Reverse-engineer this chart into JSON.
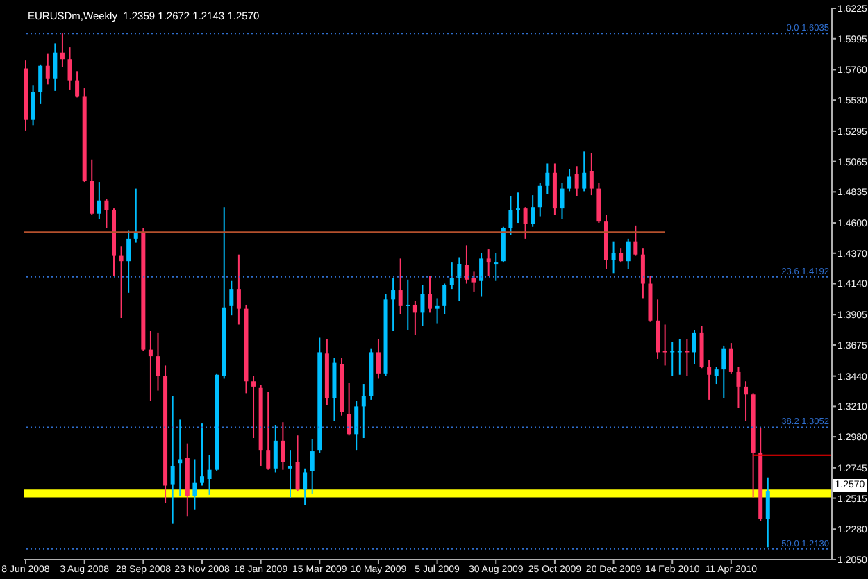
{
  "chart_data": {
    "type": "candlestick",
    "title": "EURUSDm,Weekly  1.2359 1.2672 1.2143 1.2570",
    "x": [
      "2008-06-08",
      "2008-06-15",
      "2008-06-22",
      "2008-06-29",
      "2008-07-06",
      "2008-07-13",
      "2008-07-20",
      "2008-07-27",
      "2008-08-03",
      "2008-08-10",
      "2008-08-17",
      "2008-08-24",
      "2008-08-31",
      "2008-09-07",
      "2008-09-14",
      "2008-09-21",
      "2008-09-28",
      "2008-10-05",
      "2008-10-12",
      "2008-10-19",
      "2008-10-26",
      "2008-11-02",
      "2008-11-09",
      "2008-11-16",
      "2008-11-23",
      "2008-11-30",
      "2008-12-07",
      "2008-12-14",
      "2008-12-21",
      "2008-12-28",
      "2009-01-04",
      "2009-01-11",
      "2009-01-18",
      "2009-01-25",
      "2009-02-01",
      "2009-02-08",
      "2009-02-15",
      "2009-02-22",
      "2009-03-01",
      "2009-03-08",
      "2009-03-15",
      "2009-03-22",
      "2009-03-29",
      "2009-04-05",
      "2009-04-12",
      "2009-04-19",
      "2009-04-26",
      "2009-05-03",
      "2009-05-10",
      "2009-05-17",
      "2009-05-24",
      "2009-05-31",
      "2009-06-07",
      "2009-06-14",
      "2009-06-21",
      "2009-06-28",
      "2009-07-05",
      "2009-07-12",
      "2009-07-19",
      "2009-07-26",
      "2009-08-02",
      "2009-08-09",
      "2009-08-16",
      "2009-08-23",
      "2009-08-30",
      "2009-09-06",
      "2009-09-13",
      "2009-09-20",
      "2009-09-27",
      "2009-10-04",
      "2009-10-11",
      "2009-10-18",
      "2009-10-25",
      "2009-11-01",
      "2009-11-08",
      "2009-11-15",
      "2009-11-22",
      "2009-11-29",
      "2009-12-06",
      "2009-12-13",
      "2009-12-20",
      "2009-12-27",
      "2010-01-03",
      "2010-01-10",
      "2010-01-17",
      "2010-01-24",
      "2010-01-31",
      "2010-02-07",
      "2010-02-14",
      "2010-02-21",
      "2010-02-28",
      "2010-03-07",
      "2010-03-14",
      "2010-03-21",
      "2010-03-28",
      "2010-04-04",
      "2010-04-11",
      "2010-04-18",
      "2010-04-25",
      "2010-05-02",
      "2010-05-09",
      "2010-05-16"
    ],
    "ohlc": [
      [
        1.577,
        1.583,
        1.53,
        1.538
      ],
      [
        1.538,
        1.564,
        1.534,
        1.559
      ],
      [
        1.559,
        1.58,
        1.55,
        1.579
      ],
      [
        1.579,
        1.588,
        1.565,
        1.569
      ],
      [
        1.569,
        1.596,
        1.56,
        1.589
      ],
      [
        1.589,
        1.6035,
        1.578,
        1.584
      ],
      [
        1.584,
        1.593,
        1.561,
        1.568
      ],
      [
        1.568,
        1.575,
        1.555,
        1.556
      ],
      [
        1.556,
        1.562,
        1.491,
        1.492
      ],
      [
        1.492,
        1.508,
        1.466,
        1.467
      ],
      [
        1.467,
        1.491,
        1.463,
        1.477
      ],
      [
        1.477,
        1.478,
        1.456,
        1.47
      ],
      [
        1.47,
        1.471,
        1.42,
        1.435
      ],
      [
        1.435,
        1.442,
        1.388,
        1.431
      ],
      [
        1.431,
        1.454,
        1.407,
        1.448
      ],
      [
        1.448,
        1.486,
        1.445,
        1.453
      ],
      [
        1.453,
        1.456,
        1.363,
        1.364
      ],
      [
        1.364,
        1.378,
        1.325,
        1.359
      ],
      [
        1.359,
        1.377,
        1.333,
        1.344
      ],
      [
        1.344,
        1.352,
        1.248,
        1.261
      ],
      [
        1.262,
        1.329,
        1.232,
        1.276
      ],
      [
        1.278,
        1.311,
        1.253,
        1.281
      ],
      [
        1.282,
        1.293,
        1.238,
        1.253
      ],
      [
        1.253,
        1.281,
        1.243,
        1.263
      ],
      [
        1.263,
        1.308,
        1.261,
        1.268
      ],
      [
        1.266,
        1.284,
        1.254,
        1.273
      ],
      [
        1.273,
        1.346,
        1.272,
        1.345
      ],
      [
        1.344,
        1.472,
        1.342,
        1.396
      ],
      [
        1.397,
        1.416,
        1.39,
        1.41
      ],
      [
        1.41,
        1.436,
        1.383,
        1.395
      ],
      [
        1.395,
        1.398,
        1.331,
        1.34
      ],
      [
        1.34,
        1.344,
        1.297,
        1.336
      ],
      [
        1.335,
        1.337,
        1.276,
        1.288
      ],
      [
        1.288,
        1.332,
        1.273,
        1.274
      ],
      [
        1.274,
        1.307,
        1.271,
        1.295
      ],
      [
        1.295,
        1.309,
        1.273,
        1.279
      ],
      [
        1.274,
        1.288,
        1.252,
        1.276
      ],
      [
        1.279,
        1.299,
        1.257,
        1.258
      ],
      [
        1.258,
        1.274,
        1.246,
        1.271
      ],
      [
        1.272,
        1.296,
        1.255,
        1.287
      ],
      [
        1.288,
        1.373,
        1.286,
        1.362
      ],
      [
        1.361,
        1.372,
        1.322,
        1.327
      ],
      [
        1.327,
        1.358,
        1.31,
        1.354
      ],
      [
        1.353,
        1.358,
        1.314,
        1.317
      ],
      [
        1.315,
        1.339,
        1.299,
        1.3
      ],
      [
        1.3,
        1.325,
        1.288,
        1.321
      ],
      [
        1.321,
        1.338,
        1.297,
        1.329
      ],
      [
        1.329,
        1.365,
        1.326,
        1.362
      ],
      [
        1.362,
        1.372,
        1.342,
        1.346
      ],
      [
        1.346,
        1.406,
        1.344,
        1.402
      ],
      [
        1.402,
        1.418,
        1.378,
        1.409
      ],
      [
        1.409,
        1.433,
        1.391,
        1.397
      ],
      [
        1.397,
        1.417,
        1.379,
        1.398
      ],
      [
        1.398,
        1.401,
        1.375,
        1.392
      ],
      [
        1.392,
        1.413,
        1.382,
        1.406
      ],
      [
        1.406,
        1.42,
        1.392,
        1.395
      ],
      [
        1.395,
        1.403,
        1.384,
        1.397
      ],
      [
        1.397,
        1.414,
        1.391,
        1.413
      ],
      [
        1.413,
        1.43,
        1.41,
        1.418
      ],
      [
        1.418,
        1.434,
        1.401,
        1.429
      ],
      [
        1.428,
        1.443,
        1.414,
        1.417
      ],
      [
        1.418,
        1.423,
        1.408,
        1.415
      ],
      [
        1.416,
        1.437,
        1.404,
        1.433
      ],
      [
        1.433,
        1.44,
        1.42,
        1.43
      ],
      [
        1.429,
        1.437,
        1.416,
        1.43
      ],
      [
        1.431,
        1.457,
        1.43,
        1.456
      ],
      [
        1.456,
        1.48,
        1.451,
        1.47
      ],
      [
        1.47,
        1.483,
        1.46,
        1.471
      ],
      [
        1.471,
        1.472,
        1.448,
        1.459
      ],
      [
        1.459,
        1.481,
        1.457,
        1.472
      ],
      [
        1.472,
        1.49,
        1.465,
        1.488
      ],
      [
        1.488,
        1.505,
        1.482,
        1.498
      ],
      [
        1.498,
        1.505,
        1.466,
        1.471
      ],
      [
        1.471,
        1.49,
        1.463,
        1.486
      ],
      [
        1.486,
        1.501,
        1.484,
        1.495
      ],
      [
        1.497,
        1.503,
        1.48,
        1.486
      ],
      [
        1.486,
        1.514,
        1.484,
        1.498
      ],
      [
        1.499,
        1.513,
        1.481,
        1.486
      ],
      [
        1.486,
        1.49,
        1.46,
        1.461
      ],
      [
        1.461,
        1.466,
        1.425,
        1.432
      ],
      [
        1.432,
        1.446,
        1.422,
        1.437
      ],
      [
        1.437,
        1.441,
        1.43,
        1.431
      ],
      [
        1.431,
        1.448,
        1.425,
        1.446
      ],
      [
        1.446,
        1.458,
        1.435,
        1.436
      ],
      [
        1.436,
        1.441,
        1.403,
        1.414
      ],
      [
        1.414,
        1.42,
        1.385,
        1.386
      ],
      [
        1.386,
        1.402,
        1.357,
        1.362
      ],
      [
        1.363,
        1.383,
        1.352,
        1.362
      ],
      [
        1.362,
        1.37,
        1.344,
        1.363
      ],
      [
        1.362,
        1.372,
        1.345,
        1.363
      ],
      [
        1.363,
        1.372,
        1.344,
        1.362
      ],
      [
        1.362,
        1.379,
        1.353,
        1.377
      ],
      [
        1.377,
        1.382,
        1.35,
        1.351
      ],
      [
        1.351,
        1.356,
        1.326,
        1.345
      ],
      [
        1.344,
        1.351,
        1.338,
        1.349
      ],
      [
        1.349,
        1.367,
        1.327,
        1.365
      ],
      [
        1.365,
        1.369,
        1.346,
        1.347
      ],
      [
        1.347,
        1.351,
        1.32,
        1.336
      ],
      [
        1.336,
        1.34,
        1.31,
        1.33
      ],
      [
        1.33,
        1.331,
        1.252,
        1.286
      ],
      [
        1.286,
        1.305,
        1.234,
        1.236
      ],
      [
        1.2359,
        1.2672,
        1.2143,
        1.257
      ]
    ],
    "colors": [
      "#ff3366",
      "#00bfff",
      "#00bfff",
      "#ff3366",
      "#00bfff",
      "#ff3366",
      "#ff3366",
      "#ff3366",
      "#ff3366",
      "#ff3366",
      "#00bfff",
      "#ff3366",
      "#ff3366",
      "#ff3366",
      "#00bfff",
      "#00bfff",
      "#ff3366",
      "#ff3366",
      "#ff3366",
      "#ff3366",
      "#00bfff",
      "#00bfff",
      "#ff3366",
      "#00bfff",
      "#00bfff",
      "#00bfff",
      "#00bfff",
      "#00bfff",
      "#00bfff",
      "#ff3366",
      "#ff3366",
      "#ff3366",
      "#ff3366",
      "#ff3366",
      "#00bfff",
      "#ff3366",
      "#00bfff",
      "#ff3366",
      "#00bfff",
      "#00bfff",
      "#00bfff",
      "#ff3366",
      "#00bfff",
      "#ff3366",
      "#ff3366",
      "#00bfff",
      "#00bfff",
      "#00bfff",
      "#ff3366",
      "#00bfff",
      "#00bfff",
      "#ff3366",
      "#00bfff",
      "#ff3366",
      "#00bfff",
      "#ff3366",
      "#00bfff",
      "#00bfff",
      "#00bfff",
      "#00bfff",
      "#ff3366",
      "#ff3366",
      "#00bfff",
      "#ff3366",
      "#00bfff",
      "#00bfff",
      "#00bfff",
      "#00bfff",
      "#ff3366",
      "#00bfff",
      "#00bfff",
      "#00bfff",
      "#ff3366",
      "#00bfff",
      "#00bfff",
      "#ff3366",
      "#00bfff",
      "#ff3366",
      "#ff3366",
      "#ff3366",
      "#00bfff",
      "#ff3366",
      "#00bfff",
      "#ff3366",
      "#ff3366",
      "#ff3366",
      "#ff3366",
      "#ff3366",
      "#00bfff",
      "#00bfff",
      "#ff3366",
      "#00bfff",
      "#ff3366",
      "#ff3366",
      "#00bfff",
      "#00bfff",
      "#ff3366",
      "#ff3366",
      "#ff3366",
      "#ff3366",
      "#ff3366",
      "#00bfff"
    ],
    "xlim": [
      "2008-06-06",
      "2010-07-16"
    ],
    "xticks": [
      {
        "value": "2008-06-08",
        "label": "8 Jun 2008"
      },
      {
        "value": "2008-08-03",
        "label": "3 Aug 2008"
      },
      {
        "value": "2008-09-28",
        "label": "28 Sep 2008"
      },
      {
        "value": "2008-11-23",
        "label": "23 Nov 2008"
      },
      {
        "value": "2009-01-18",
        "label": "18 Jan 2009"
      },
      {
        "value": "2009-03-15",
        "label": "15 Mar 2009"
      },
      {
        "value": "2009-05-10",
        "label": "10 May 2009"
      },
      {
        "value": "2009-07-05",
        "label": "5 Jul 2009"
      },
      {
        "value": "2009-08-30",
        "label": "30 Aug 2009"
      },
      {
        "value": "2009-10-25",
        "label": "25 Oct 2009"
      },
      {
        "value": "2009-12-20",
        "label": "20 Dec 2009"
      },
      {
        "value": "2010-02-14",
        "label": "14 Feb 2010"
      },
      {
        "value": "2010-04-11",
        "label": "11 Apr 2010"
      }
    ],
    "ylim": [
      1.205,
      1.6225
    ],
    "yticks": [
      {
        "value": 1.205,
        "label": "1.2050"
      },
      {
        "value": 1.228,
        "label": "1.2280"
      },
      1.2515,
      1.2745,
      {
        "value": 1.298,
        "label": "1.2980"
      },
      {
        "value": 1.321,
        "label": "1.3210"
      },
      {
        "value": 1.344,
        "label": "1.3440"
      },
      1.3675,
      1.3905,
      {
        "value": 1.414,
        "label": "1.4140"
      },
      {
        "value": 1.437,
        "label": "1.4370"
      },
      {
        "value": 1.46,
        "label": "1.4600"
      },
      1.4835,
      1.5065,
      1.5295,
      {
        "value": 1.553,
        "label": "1.5530"
      },
      {
        "value": 1.576,
        "label": "1.5760"
      },
      1.5995,
      1.6225
    ],
    "series": [
      {
        "type": "line",
        "color": "#b4502d",
        "x": [
          "2008-06-06",
          "2010-02-07"
        ],
        "values": [
          1.453,
          1.453
        ]
      },
      {
        "type": "line",
        "color": "#ff0000",
        "x": [
          "2010-05-02",
          "2010-07-16"
        ],
        "values": [
          1.284,
          1.284
        ]
      }
    ],
    "ref_lines": [
      {
        "axis": "y",
        "value": 1.6035,
        "label": "0.0 1.6035",
        "color": "#2f6fd0",
        "line_style": "dotted"
      },
      {
        "axis": "y",
        "value": 1.4192,
        "label": "23.6 1.4192",
        "color": "#2f6fd0",
        "line_style": "dotted"
      },
      {
        "axis": "y",
        "value": 1.3052,
        "label": "38.2 1.3052",
        "color": "#2f6fd0",
        "line_style": "dotted"
      },
      {
        "axis": "y",
        "value": 1.213,
        "label": "50.0 1.2130",
        "color": "#2f6fd0",
        "line_style": "dotted"
      }
    ],
    "bands": [
      {
        "axis": "y",
        "from": 1.252,
        "to": 1.258,
        "color": "#ffff00"
      }
    ],
    "annotations": [
      "1.2570"
    ]
  }
}
